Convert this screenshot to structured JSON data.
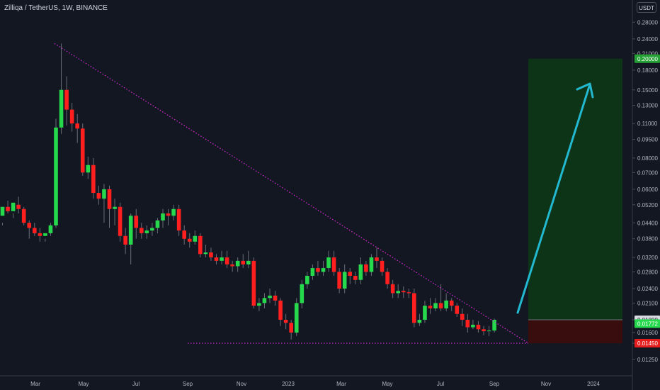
{
  "header": {
    "symbol_line": "Zilliqa / TetherUS, 1W, BINANCE",
    "currency": "USDT"
  },
  "colors": {
    "background": "#131722",
    "up": "#26d84b",
    "down": "#ff1f1f",
    "trendline": "#d62bd6",
    "arrow": "#22b8cf",
    "target_zone": "#0e3a16",
    "stop_zone": "#3e0c0c",
    "axis_text": "#b2b5be"
  },
  "chart_data": {
    "type": "candlestick",
    "scale": "log",
    "y_ticks": [
      "0.28000",
      "0.24000",
      "0.21000",
      "0.18000",
      "0.15000",
      "0.13000",
      "0.11000",
      "0.09500",
      "0.08000",
      "0.07000",
      "0.06000",
      "0.05200",
      "0.04400",
      "0.03800",
      "0.03200",
      "0.02800",
      "0.02400",
      "0.02100",
      "0.01800",
      "0.01600",
      "0.01450",
      "0.01250"
    ],
    "x_ticks": [
      "Mar",
      "May",
      "Jul",
      "Sep",
      "Nov",
      "2023",
      "Mar",
      "May",
      "Jul",
      "Sep",
      "Nov",
      "2024"
    ],
    "price_labels": [
      {
        "text": "0.20000",
        "kind": "target",
        "color": "#26a136"
      },
      {
        "text": "0.01800",
        "kind": "entry",
        "color": "#d9dde3"
      },
      {
        "text": "0.01772",
        "kind": "last",
        "color": "#26d84b"
      },
      {
        "text": "0.01450",
        "kind": "stop",
        "color": "#e51c1c"
      }
    ],
    "candles": [
      [
        0.047,
        0.051,
        0.044,
        0.043
      ],
      [
        0.051,
        0.049,
        0.054,
        0.048
      ],
      [
        0.049,
        0.053,
        0.048,
        0.046
      ],
      [
        0.052,
        0.05,
        0.056,
        0.048
      ],
      [
        0.05,
        0.044,
        0.051,
        0.043
      ],
      [
        0.044,
        0.042,
        0.045,
        0.038
      ],
      [
        0.042,
        0.04,
        0.044,
        0.039
      ],
      [
        0.04,
        0.039,
        0.042,
        0.037
      ],
      [
        0.039,
        0.04,
        0.038,
        0.037
      ],
      [
        0.04,
        0.043,
        0.044,
        0.039
      ],
      [
        0.043,
        0.106,
        0.115,
        0.042
      ],
      [
        0.106,
        0.15,
        0.23,
        0.1
      ],
      [
        0.15,
        0.125,
        0.17,
        0.108
      ],
      [
        0.125,
        0.11,
        0.133,
        0.102
      ],
      [
        0.11,
        0.105,
        0.12,
        0.092
      ],
      [
        0.105,
        0.07,
        0.11,
        0.068
      ],
      [
        0.07,
        0.075,
        0.081,
        0.066
      ],
      [
        0.075,
        0.058,
        0.08,
        0.055
      ],
      [
        0.058,
        0.055,
        0.062,
        0.052
      ],
      [
        0.055,
        0.06,
        0.063,
        0.044
      ],
      [
        0.06,
        0.05,
        0.062,
        0.042
      ],
      [
        0.05,
        0.051,
        0.055,
        0.043
      ],
      [
        0.051,
        0.039,
        0.053,
        0.037
      ],
      [
        0.039,
        0.036,
        0.042,
        0.033
      ],
      [
        0.036,
        0.047,
        0.048,
        0.03
      ],
      [
        0.047,
        0.042,
        0.05,
        0.038
      ],
      [
        0.042,
        0.04,
        0.044,
        0.038
      ],
      [
        0.04,
        0.041,
        0.043,
        0.038
      ],
      [
        0.041,
        0.042,
        0.044,
        0.039
      ],
      [
        0.042,
        0.045,
        0.046,
        0.04
      ],
      [
        0.045,
        0.048,
        0.05,
        0.042
      ],
      [
        0.048,
        0.047,
        0.05,
        0.043
      ],
      [
        0.047,
        0.05,
        0.052,
        0.045
      ],
      [
        0.05,
        0.041,
        0.052,
        0.039
      ],
      [
        0.041,
        0.038,
        0.043,
        0.036
      ],
      [
        0.038,
        0.037,
        0.04,
        0.035
      ],
      [
        0.037,
        0.039,
        0.041,
        0.036
      ],
      [
        0.039,
        0.033,
        0.04,
        0.032
      ],
      [
        0.033,
        0.0335,
        0.036,
        0.032
      ],
      [
        0.0335,
        0.032,
        0.035,
        0.031
      ],
      [
        0.032,
        0.031,
        0.033,
        0.03
      ],
      [
        0.031,
        0.032,
        0.034,
        0.03
      ],
      [
        0.032,
        0.03,
        0.034,
        0.029
      ],
      [
        0.03,
        0.0295,
        0.031,
        0.028
      ],
      [
        0.0295,
        0.031,
        0.032,
        0.028
      ],
      [
        0.031,
        0.03,
        0.033,
        0.029
      ],
      [
        0.03,
        0.031,
        0.034,
        0.029
      ],
      [
        0.031,
        0.0205,
        0.032,
        0.02
      ],
      [
        0.0205,
        0.021,
        0.022,
        0.0195
      ],
      [
        0.021,
        0.022,
        0.023,
        0.02
      ],
      [
        0.022,
        0.0225,
        0.024,
        0.021
      ],
      [
        0.0225,
        0.0215,
        0.0235,
        0.0205
      ],
      [
        0.0215,
        0.018,
        0.022,
        0.017
      ],
      [
        0.018,
        0.0175,
        0.019,
        0.0165
      ],
      [
        0.0175,
        0.016,
        0.018,
        0.015
      ],
      [
        0.016,
        0.021,
        0.022,
        0.0155
      ],
      [
        0.021,
        0.025,
        0.026,
        0.02
      ],
      [
        0.025,
        0.027,
        0.028,
        0.024
      ],
      [
        0.027,
        0.029,
        0.03,
        0.026
      ],
      [
        0.029,
        0.028,
        0.031,
        0.027
      ],
      [
        0.028,
        0.029,
        0.031,
        0.027
      ],
      [
        0.029,
        0.032,
        0.034,
        0.028
      ],
      [
        0.032,
        0.028,
        0.034,
        0.027
      ],
      [
        0.028,
        0.024,
        0.029,
        0.023
      ],
      [
        0.024,
        0.028,
        0.03,
        0.023
      ],
      [
        0.028,
        0.027,
        0.029,
        0.025
      ],
      [
        0.027,
        0.026,
        0.028,
        0.025
      ],
      [
        0.026,
        0.03,
        0.032,
        0.025
      ],
      [
        0.03,
        0.028,
        0.031,
        0.027
      ],
      [
        0.028,
        0.032,
        0.033,
        0.027
      ],
      [
        0.032,
        0.031,
        0.035,
        0.029
      ],
      [
        0.031,
        0.028,
        0.032,
        0.027
      ],
      [
        0.028,
        0.025,
        0.029,
        0.024
      ],
      [
        0.025,
        0.023,
        0.026,
        0.022
      ],
      [
        0.023,
        0.0235,
        0.025,
        0.022
      ],
      [
        0.0235,
        0.0232,
        0.0245,
        0.022
      ],
      [
        0.0232,
        0.023,
        0.024,
        0.022
      ],
      [
        0.023,
        0.0175,
        0.024,
        0.0168
      ],
      [
        0.0175,
        0.018,
        0.019,
        0.017
      ],
      [
        0.018,
        0.0205,
        0.0215,
        0.0175
      ],
      [
        0.0205,
        0.02,
        0.022,
        0.019
      ],
      [
        0.02,
        0.021,
        0.022,
        0.0195
      ],
      [
        0.021,
        0.02,
        0.025,
        0.0195
      ],
      [
        0.02,
        0.0215,
        0.023,
        0.0195
      ],
      [
        0.0215,
        0.0205,
        0.022,
        0.0195
      ],
      [
        0.0205,
        0.019,
        0.021,
        0.0185
      ],
      [
        0.019,
        0.018,
        0.02,
        0.017
      ],
      [
        0.018,
        0.0168,
        0.019,
        0.016
      ],
      [
        0.0168,
        0.0172,
        0.018,
        0.0165
      ],
      [
        0.0172,
        0.0165,
        0.0178,
        0.016
      ],
      [
        0.0165,
        0.0162,
        0.017,
        0.0156
      ],
      [
        0.0162,
        0.0163,
        0.017,
        0.0155
      ],
      [
        0.0163,
        0.018,
        0.0182,
        0.016
      ]
    ]
  }
}
